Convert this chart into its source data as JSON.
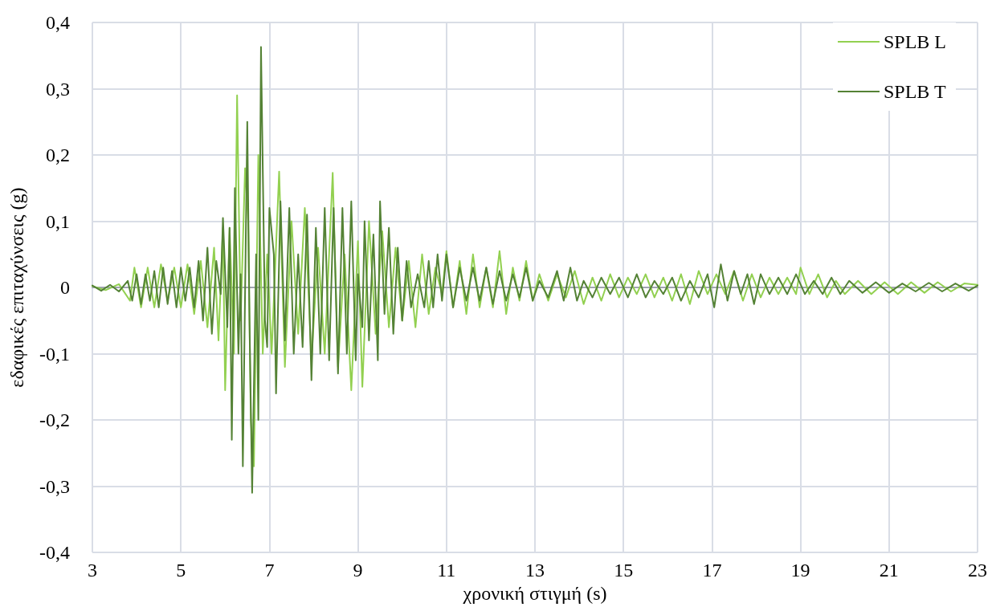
{
  "chart_data": {
    "type": "line",
    "xlabel": "χρονική στιγμή (s)",
    "ylabel": "εδαφικές επιταχύνσεις (g)",
    "xlim": [
      3,
      23
    ],
    "xticks": [
      3,
      5,
      7,
      9,
      11,
      13,
      15,
      17,
      19,
      21,
      23
    ],
    "ylim": [
      -0.4,
      0.4
    ],
    "yticks": [
      {
        "value": -0.4,
        "label": "-0,4"
      },
      {
        "value": -0.3,
        "label": "-0,3"
      },
      {
        "value": -0.2,
        "label": "-0,2"
      },
      {
        "value": -0.1,
        "label": "-0,1"
      },
      0,
      {
        "value": 0.1,
        "label": "0,1"
      },
      {
        "value": 0.2,
        "label": "0,2"
      },
      {
        "value": 0.3,
        "label": "0,3"
      },
      {
        "value": 0.4,
        "label": "0,4"
      }
    ],
    "grid": true,
    "legend": "top right",
    "marker": "none",
    "line_style": "solid",
    "series": [
      {
        "name": "SPLB L",
        "color": "#92d050",
        "x": [
          3.0,
          3.3,
          3.6,
          3.85,
          3.95,
          4.1,
          4.25,
          4.4,
          4.55,
          4.7,
          4.85,
          5.0,
          5.15,
          5.3,
          5.45,
          5.6,
          5.75,
          5.85,
          5.95,
          6.0,
          6.1,
          6.2,
          6.27,
          6.35,
          6.45,
          6.52,
          6.58,
          6.65,
          6.75,
          6.85,
          6.95,
          7.05,
          7.22,
          7.35,
          7.5,
          7.65,
          7.8,
          7.95,
          8.1,
          8.25,
          8.43,
          8.55,
          8.7,
          8.85,
          9.0,
          9.1,
          9.25,
          9.4,
          9.55,
          9.7,
          9.85,
          10.0,
          10.15,
          10.3,
          10.45,
          10.6,
          10.75,
          10.9,
          11.0,
          11.15,
          11.3,
          11.45,
          11.6,
          11.75,
          11.9,
          12.05,
          12.2,
          12.35,
          12.5,
          12.65,
          12.8,
          12.95,
          13.1,
          13.3,
          13.5,
          13.7,
          13.9,
          14.1,
          14.3,
          14.5,
          14.7,
          14.9,
          15.1,
          15.3,
          15.5,
          15.7,
          15.9,
          16.1,
          16.3,
          16.5,
          16.7,
          16.9,
          17.1,
          17.3,
          17.5,
          17.7,
          17.9,
          18.1,
          18.3,
          18.5,
          18.7,
          18.9,
          19.0,
          19.2,
          19.4,
          19.6,
          19.8,
          20.0,
          20.3,
          20.6,
          20.9,
          21.2,
          21.5,
          21.8,
          22.1,
          22.4,
          22.7,
          23.0
        ],
        "values": [
          0.002,
          -0.004,
          0.005,
          -0.02,
          0.03,
          -0.03,
          0.03,
          -0.03,
          0.035,
          -0.02,
          0.03,
          -0.03,
          0.035,
          -0.04,
          0.04,
          -0.06,
          0.06,
          -0.08,
          0.09,
          -0.155,
          0.09,
          -0.1,
          0.29,
          -0.05,
          0.18,
          0.1,
          -0.2,
          -0.27,
          0.2,
          -0.1,
          0.05,
          -0.1,
          0.175,
          -0.12,
          0.1,
          -0.07,
          0.12,
          -0.11,
          0.06,
          -0.1,
          0.173,
          -0.12,
          0.05,
          -0.155,
          0.07,
          -0.15,
          0.1,
          -0.07,
          0.085,
          -0.06,
          0.06,
          -0.05,
          0.04,
          -0.06,
          0.05,
          -0.04,
          0.03,
          -0.01,
          0.055,
          -0.03,
          0.04,
          -0.04,
          0.05,
          -0.03,
          0.03,
          -0.03,
          0.055,
          -0.04,
          0.03,
          -0.02,
          0.04,
          -0.02,
          0.02,
          -0.02,
          0.02,
          -0.015,
          0.025,
          -0.025,
          0.015,
          -0.02,
          0.02,
          -0.015,
          0.015,
          -0.01,
          0.02,
          -0.015,
          0.015,
          -0.02,
          0.02,
          -0.025,
          0.025,
          -0.01,
          0.02,
          -0.01,
          0.025,
          -0.02,
          0.02,
          -0.015,
          0.015,
          -0.01,
          0.015,
          -0.01,
          0.03,
          -0.01,
          0.02,
          -0.015,
          0.01,
          -0.01,
          0.01,
          -0.01,
          0.008,
          -0.01,
          0.008,
          -0.008,
          0.008,
          -0.006,
          0.006,
          0.004
        ]
      },
      {
        "name": "SPLB T",
        "color": "#548235",
        "x": [
          3.0,
          3.2,
          3.4,
          3.6,
          3.8,
          3.9,
          4.0,
          4.1,
          4.2,
          4.3,
          4.4,
          4.5,
          4.6,
          4.7,
          4.8,
          4.9,
          5.0,
          5.1,
          5.2,
          5.3,
          5.4,
          5.5,
          5.6,
          5.7,
          5.8,
          5.9,
          5.95,
          6.05,
          6.1,
          6.15,
          6.22,
          6.3,
          6.35,
          6.4,
          6.5,
          6.55,
          6.61,
          6.7,
          6.75,
          6.81,
          6.9,
          6.95,
          7.0,
          7.1,
          7.15,
          7.25,
          7.35,
          7.45,
          7.55,
          7.65,
          7.75,
          7.85,
          7.95,
          8.05,
          8.15,
          8.25,
          8.35,
          8.45,
          8.55,
          8.65,
          8.75,
          8.85,
          8.95,
          9.0,
          9.1,
          9.15,
          9.25,
          9.35,
          9.45,
          9.5,
          9.6,
          9.7,
          9.8,
          9.9,
          10.0,
          10.1,
          10.2,
          10.35,
          10.5,
          10.6,
          10.7,
          10.8,
          10.9,
          11.0,
          11.15,
          11.3,
          11.45,
          11.6,
          11.75,
          11.9,
          12.05,
          12.2,
          12.35,
          12.5,
          12.65,
          12.8,
          12.95,
          13.1,
          13.3,
          13.5,
          13.65,
          13.8,
          13.95,
          14.1,
          14.3,
          14.5,
          14.7,
          14.9,
          15.1,
          15.3,
          15.5,
          15.7,
          15.9,
          16.1,
          16.3,
          16.5,
          16.7,
          16.9,
          17.05,
          17.2,
          17.35,
          17.5,
          17.65,
          17.8,
          17.95,
          18.1,
          18.3,
          18.5,
          18.7,
          18.9,
          19.1,
          19.3,
          19.5,
          19.7,
          19.9,
          20.1,
          20.4,
          20.7,
          21.0,
          21.3,
          21.6,
          21.9,
          22.2,
          22.5,
          22.8,
          23.0
        ],
        "values": [
          0.003,
          -0.005,
          0.004,
          -0.006,
          0.01,
          -0.02,
          0.02,
          -0.025,
          0.02,
          -0.02,
          0.025,
          -0.03,
          0.03,
          -0.025,
          0.025,
          -0.03,
          0.03,
          -0.02,
          0.03,
          -0.03,
          0.04,
          -0.05,
          0.06,
          -0.07,
          0.04,
          -0.01,
          0.105,
          -0.06,
          0.09,
          -0.23,
          0.15,
          -0.1,
          0.02,
          -0.27,
          0.25,
          -0.05,
          -0.31,
          0.05,
          -0.2,
          0.363,
          -0.05,
          -0.09,
          0.12,
          0.05,
          -0.16,
          0.13,
          -0.08,
          0.12,
          -0.1,
          0.05,
          -0.09,
          0.11,
          -0.14,
          0.09,
          -0.1,
          0.12,
          -0.11,
          0.12,
          -0.13,
          0.12,
          -0.1,
          0.13,
          -0.11,
          0.02,
          -0.06,
          0.1,
          -0.08,
          0.08,
          -0.11,
          0.13,
          -0.04,
          0.09,
          -0.07,
          0.06,
          -0.05,
          0.04,
          -0.03,
          0.02,
          -0.03,
          0.04,
          -0.03,
          0.05,
          -0.02,
          0.05,
          -0.03,
          0.03,
          -0.02,
          0.03,
          -0.02,
          0.03,
          -0.025,
          0.025,
          -0.02,
          0.02,
          -0.015,
          0.03,
          -0.02,
          0.01,
          -0.015,
          0.025,
          -0.02,
          0.03,
          -0.02,
          0.01,
          -0.015,
          0.015,
          -0.01,
          0.015,
          -0.015,
          0.02,
          -0.015,
          0.01,
          -0.01,
          0.015,
          -0.02,
          0.01,
          -0.015,
          0.02,
          -0.03,
          0.035,
          -0.02,
          0.025,
          -0.01,
          0.02,
          -0.025,
          0.02,
          -0.01,
          0.015,
          -0.01,
          0.02,
          -0.01,
          0.01,
          -0.01,
          0.015,
          -0.01,
          0.01,
          -0.008,
          0.008,
          -0.008,
          0.006,
          -0.006,
          0.007,
          -0.006,
          0.006,
          -0.005,
          0.003
        ]
      }
    ]
  }
}
